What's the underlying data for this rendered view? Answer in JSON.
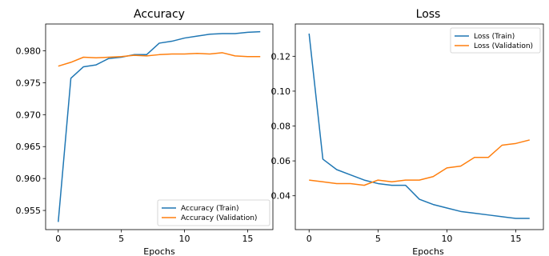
{
  "chart_data": [
    {
      "type": "line",
      "title": "Accuracy",
      "xlabel": "Epochs",
      "ylabel": "",
      "x": [
        0,
        1,
        2,
        3,
        4,
        5,
        6,
        7,
        8,
        9,
        10,
        11,
        12,
        13,
        14,
        15,
        16
      ],
      "xlim": [
        -1,
        17
      ],
      "ylim": [
        0.952,
        0.9842
      ],
      "xticks": [
        0,
        5,
        10,
        15
      ],
      "yticks": [
        0.955,
        0.96,
        0.965,
        0.97,
        0.975,
        0.98
      ],
      "ytick_labels": [
        "0.955",
        "0.960",
        "0.965",
        "0.970",
        "0.975",
        "0.980"
      ],
      "grid": false,
      "legend": "bottom-right",
      "series": [
        {
          "name": "Accuracy (Train)",
          "color": "#1f77b4",
          "values": [
            0.9532,
            0.9757,
            0.9775,
            0.9778,
            0.9788,
            0.979,
            0.9794,
            0.9794,
            0.9812,
            0.9815,
            0.982,
            0.9823,
            0.9826,
            0.9827,
            0.9827,
            0.9829,
            0.983
          ]
        },
        {
          "name": "Accuracy (Validation)",
          "color": "#ff7f0e",
          "values": [
            0.9776,
            0.9782,
            0.979,
            0.9789,
            0.979,
            0.9791,
            0.9793,
            0.9792,
            0.9794,
            0.9795,
            0.9795,
            0.9796,
            0.9795,
            0.9797,
            0.9792,
            0.9791,
            0.9791
          ]
        }
      ]
    },
    {
      "type": "line",
      "title": "Loss",
      "xlabel": "Epochs",
      "ylabel": "",
      "x": [
        0,
        1,
        2,
        3,
        4,
        5,
        6,
        7,
        8,
        9,
        10,
        11,
        12,
        13,
        14,
        15,
        16
      ],
      "xlim": [
        -1,
        17
      ],
      "ylim": [
        0.0206,
        0.1385
      ],
      "xticks": [
        0,
        5,
        10,
        15
      ],
      "yticks": [
        0.04,
        0.06,
        0.08,
        0.1,
        0.12
      ],
      "ytick_labels": [
        "0.04",
        "0.06",
        "0.08",
        "0.10",
        "0.12"
      ],
      "grid": false,
      "legend": "top-right",
      "series": [
        {
          "name": "Loss (Train)",
          "color": "#1f77b4",
          "values": [
            0.133,
            0.061,
            0.055,
            0.052,
            0.049,
            0.047,
            0.046,
            0.046,
            0.038,
            0.035,
            0.033,
            0.031,
            0.03,
            0.029,
            0.028,
            0.027,
            0.027
          ]
        },
        {
          "name": "Loss (Validation)",
          "color": "#ff7f0e",
          "values": [
            0.049,
            0.048,
            0.047,
            0.047,
            0.046,
            0.049,
            0.048,
            0.049,
            0.049,
            0.051,
            0.056,
            0.057,
            0.062,
            0.062,
            0.069,
            0.07,
            0.072
          ]
        }
      ]
    }
  ]
}
